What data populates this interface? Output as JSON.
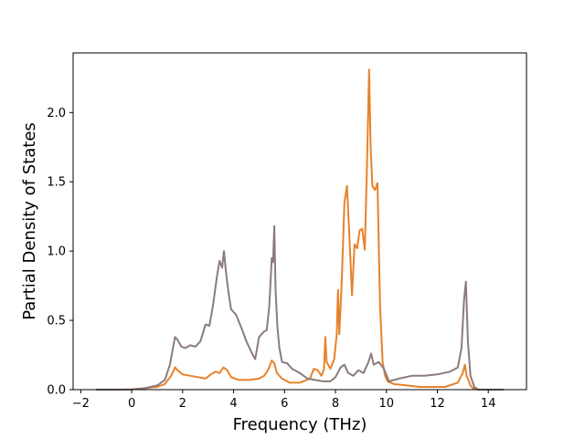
{
  "chart_data": {
    "type": "line",
    "title": "",
    "xlabel": "Frequency (THz)",
    "ylabel": "Partial Density of States",
    "xlim": [
      -2.3,
      15.5
    ],
    "ylim": [
      0,
      2.43
    ],
    "xticks": [
      -2,
      0,
      2,
      4,
      6,
      8,
      10,
      12,
      14
    ],
    "xtick_labels": [
      "−2",
      "0",
      "2",
      "4",
      "6",
      "8",
      "10",
      "12",
      "14"
    ],
    "yticks": [
      0,
      0.5,
      1.0,
      1.5,
      2.0
    ],
    "ytick_labels": [
      "0.0",
      "0.5",
      "1.0",
      "1.5",
      "2.0"
    ],
    "grid": false,
    "series": [
      {
        "color": "#e8822a",
        "x": [
          -1.4,
          -0.5,
          0,
          0.5,
          1.0,
          1.3,
          1.55,
          1.7,
          1.8,
          2.0,
          2.3,
          2.6,
          2.9,
          3.1,
          3.3,
          3.45,
          3.6,
          3.75,
          3.9,
          4.2,
          4.6,
          5.0,
          5.2,
          5.35,
          5.5,
          5.6,
          5.7,
          5.9,
          6.2,
          6.6,
          7.0,
          7.15,
          7.3,
          7.45,
          7.55,
          7.6,
          7.65,
          7.8,
          7.95,
          8.05,
          8.1,
          8.15,
          8.25,
          8.35,
          8.45,
          8.55,
          8.65,
          8.75,
          8.85,
          8.95,
          9.05,
          9.15,
          9.25,
          9.32,
          9.38,
          9.45,
          9.55,
          9.65,
          9.75,
          9.85,
          9.95,
          10.05,
          10.3,
          10.8,
          11.3,
          11.8,
          12.3,
          12.8,
          13.0,
          13.08,
          13.15,
          13.3,
          13.4,
          13.6,
          14.0,
          14.6
        ],
        "y": [
          0,
          0,
          0.002,
          0.01,
          0.02,
          0.04,
          0.1,
          0.16,
          0.14,
          0.11,
          0.1,
          0.09,
          0.08,
          0.11,
          0.13,
          0.12,
          0.16,
          0.14,
          0.09,
          0.07,
          0.07,
          0.08,
          0.1,
          0.14,
          0.21,
          0.19,
          0.12,
          0.08,
          0.05,
          0.05,
          0.08,
          0.15,
          0.14,
          0.1,
          0.15,
          0.38,
          0.2,
          0.15,
          0.22,
          0.4,
          0.72,
          0.4,
          0.8,
          1.35,
          1.47,
          1.1,
          0.68,
          1.05,
          1.02,
          1.15,
          1.16,
          1.01,
          1.7,
          2.31,
          1.75,
          1.47,
          1.44,
          1.49,
          0.6,
          0.2,
          0.1,
          0.06,
          0.04,
          0.03,
          0.02,
          0.02,
          0.02,
          0.05,
          0.12,
          0.18,
          0.1,
          0.03,
          0.01,
          0,
          0,
          0
        ]
      },
      {
        "color": "#8c7b7b",
        "x": [
          -1.4,
          -0.5,
          0,
          0.5,
          1.0,
          1.3,
          1.5,
          1.62,
          1.7,
          1.8,
          1.95,
          2.1,
          2.3,
          2.5,
          2.7,
          2.9,
          3.05,
          3.2,
          3.35,
          3.45,
          3.55,
          3.62,
          3.7,
          3.8,
          3.9,
          4.1,
          4.3,
          4.5,
          4.7,
          4.85,
          5.0,
          5.2,
          5.3,
          5.4,
          5.5,
          5.55,
          5.6,
          5.65,
          5.72,
          5.8,
          5.9,
          6.1,
          6.3,
          6.6,
          6.9,
          7.2,
          7.5,
          7.8,
          8.0,
          8.2,
          8.35,
          8.5,
          8.7,
          8.9,
          9.1,
          9.3,
          9.4,
          9.5,
          9.7,
          9.9,
          10.1,
          10.5,
          11.0,
          11.5,
          12.0,
          12.5,
          12.8,
          12.95,
          13.05,
          13.12,
          13.2,
          13.3,
          13.45,
          13.6,
          14.0,
          14.6
        ],
        "y": [
          0,
          0,
          0.002,
          0.01,
          0.03,
          0.07,
          0.18,
          0.3,
          0.38,
          0.36,
          0.31,
          0.3,
          0.32,
          0.31,
          0.35,
          0.47,
          0.46,
          0.62,
          0.82,
          0.93,
          0.88,
          1.0,
          0.85,
          0.7,
          0.58,
          0.54,
          0.45,
          0.35,
          0.27,
          0.22,
          0.38,
          0.42,
          0.43,
          0.6,
          0.95,
          0.92,
          1.18,
          0.72,
          0.45,
          0.3,
          0.2,
          0.19,
          0.15,
          0.12,
          0.08,
          0.07,
          0.06,
          0.06,
          0.09,
          0.16,
          0.18,
          0.12,
          0.1,
          0.14,
          0.12,
          0.2,
          0.26,
          0.18,
          0.2,
          0.15,
          0.06,
          0.08,
          0.1,
          0.1,
          0.11,
          0.13,
          0.16,
          0.3,
          0.65,
          0.78,
          0.35,
          0.1,
          0.02,
          0,
          0,
          0
        ]
      }
    ]
  }
}
